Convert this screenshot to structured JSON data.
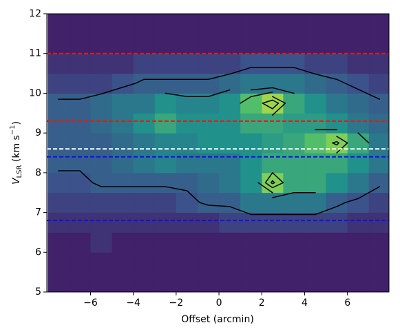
{
  "chart_data": {
    "type": "heatmap",
    "xlabel": "Offset (arcmin)",
    "ylabel_parts": [
      "V",
      "LSR",
      " (km s",
      "−1",
      ")"
    ],
    "xlim": [
      -8.04,
      7.94
    ],
    "ylim": [
      5,
      12
    ],
    "xticks": [
      {
        "value": -6,
        "label": "−6"
      },
      {
        "value": -4,
        "label": "−4"
      },
      {
        "value": -2,
        "label": "−2"
      },
      0,
      2,
      4,
      6
    ],
    "yticks": [
      5,
      6,
      7,
      8,
      9,
      10,
      11,
      12
    ],
    "colormap": "viridis",
    "zlim": [
      0,
      10
    ],
    "xbins": [
      -8,
      -7,
      -6,
      -5,
      -4,
      -3,
      -2,
      -1,
      0,
      1,
      2,
      3,
      4,
      5,
      6,
      7,
      8
    ],
    "ybins": [
      5,
      5.5,
      6,
      6.5,
      7,
      7.5,
      8,
      8.5,
      9,
      9.5,
      10,
      10.5,
      11,
      11.5,
      12
    ],
    "z": [
      [
        1,
        1,
        1,
        1,
        1,
        1,
        1,
        1,
        1,
        1,
        1,
        1,
        1,
        1,
        1,
        1
      ],
      [
        1,
        1,
        1,
        1,
        1,
        1,
        1,
        1,
        1,
        1,
        1,
        1,
        1,
        1,
        1,
        1
      ],
      [
        1,
        1,
        1.5,
        1,
        1,
        1,
        1,
        1,
        1,
        1,
        1,
        1,
        1,
        1,
        1,
        1
      ],
      [
        1.5,
        1.5,
        1.5,
        1.5,
        1.5,
        1.5,
        1.5,
        1.5,
        2,
        2,
        2,
        2,
        2,
        2,
        1.5,
        1.5
      ],
      [
        2,
        2,
        2,
        2,
        2,
        2,
        2.5,
        3,
        3,
        4,
        4,
        4,
        4,
        3,
        2.5,
        2
      ],
      [
        2.5,
        2.5,
        3,
        3,
        3,
        3,
        3,
        3.5,
        4,
        5,
        8,
        6,
        6,
        5,
        4,
        3
      ],
      [
        3,
        3,
        3,
        3.5,
        4,
        4.5,
        4,
        4,
        4,
        5,
        6,
        6,
        6,
        6,
        5,
        4
      ],
      [
        3,
        3,
        3,
        3.5,
        4,
        4.5,
        4.5,
        5,
        5,
        5,
        5.5,
        6,
        7,
        8,
        6,
        4
      ],
      [
        3,
        3,
        3.5,
        4,
        5,
        6,
        5,
        5,
        5,
        6,
        6,
        5.5,
        5.5,
        5,
        4,
        3.5
      ],
      [
        3,
        3,
        3.5,
        4,
        4,
        5,
        4.5,
        4.5,
        5,
        7,
        8.5,
        6,
        5,
        4,
        3.5,
        3
      ],
      [
        2,
        2,
        2,
        2.5,
        3,
        3,
        3,
        3,
        3.5,
        4,
        4,
        4,
        3.5,
        3,
        2.5,
        2
      ],
      [
        1.5,
        1.5,
        1.5,
        1.5,
        2,
        2,
        2,
        2,
        2,
        2.5,
        2.5,
        2.5,
        2,
        2,
        1.5,
        1.5
      ],
      [
        1,
        1,
        1,
        1,
        1,
        1,
        1,
        1,
        1,
        1,
        1,
        1,
        1,
        1,
        1,
        1
      ],
      [
        1,
        1,
        1,
        1,
        1,
        1,
        1,
        1,
        1,
        1,
        1,
        1,
        1,
        1,
        1,
        1
      ]
    ],
    "contour_levels": [
      2.8,
      4,
      5,
      6,
      7,
      7.8
    ],
    "hlines": [
      {
        "value": 11,
        "color": "#e8161b"
      },
      {
        "value": 9.3,
        "color": "#e8161b"
      },
      {
        "value": 8.6,
        "color": "#ffffff"
      },
      {
        "value": 8.4,
        "color": "#1010e8"
      },
      {
        "value": 6.8,
        "color": "#1010e8"
      }
    ]
  }
}
